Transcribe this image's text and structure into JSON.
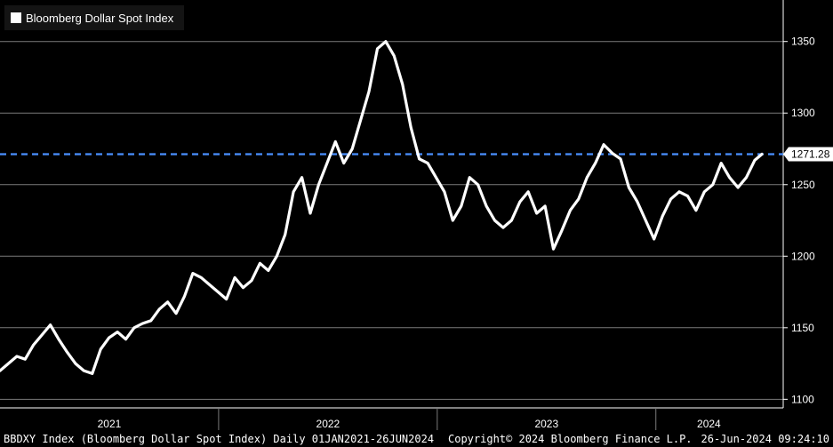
{
  "footer": {
    "left": "BBDXY Index (Bloomberg Dollar Spot Index)  Daily 01JAN2021-26JUN2024",
    "center": "Copyright© 2024 Bloomberg Finance L.P.",
    "right": "26-Jun-2024 09:24:10"
  },
  "colors": {
    "background": "#000000",
    "line": "#ffffff",
    "reference_line": "#4a90ff",
    "grid": "#7a7a7a"
  },
  "chart_data": {
    "type": "line",
    "title": "",
    "legend": {
      "entries": [
        "Bloomberg Dollar Spot Index"
      ],
      "placement": "top-left"
    },
    "xlabel": "",
    "ylabel": "",
    "x_tick_labels": [
      "2021",
      "2022",
      "2023",
      "2024"
    ],
    "y_ticks": [
      1100,
      1150,
      1200,
      1250,
      1300,
      1350
    ],
    "ylim": [
      1094,
      1379
    ],
    "xlim": [
      "2021-01-01",
      "2024-06-26"
    ],
    "grid": true,
    "y_axis_side": "right",
    "last_value": 1271.28,
    "last_value_label": "1271.28",
    "reference_line": {
      "value": 1271.28,
      "style": "dashed"
    },
    "series": [
      {
        "name": "Bloomberg Dollar Spot Index",
        "points": [
          [
            "2021-01-01",
            1120
          ],
          [
            "2021-01-15",
            1125
          ],
          [
            "2021-01-29",
            1130
          ],
          [
            "2021-02-12",
            1128
          ],
          [
            "2021-02-26",
            1138
          ],
          [
            "2021-03-12",
            1145
          ],
          [
            "2021-03-26",
            1152
          ],
          [
            "2021-04-09",
            1142
          ],
          [
            "2021-04-23",
            1133
          ],
          [
            "2021-05-07",
            1125
          ],
          [
            "2021-05-21",
            1120
          ],
          [
            "2021-06-04",
            1118
          ],
          [
            "2021-06-18",
            1135
          ],
          [
            "2021-07-02",
            1143
          ],
          [
            "2021-07-16",
            1147
          ],
          [
            "2021-07-30",
            1142
          ],
          [
            "2021-08-13",
            1150
          ],
          [
            "2021-08-27",
            1153
          ],
          [
            "2021-09-10",
            1155
          ],
          [
            "2021-09-24",
            1163
          ],
          [
            "2021-10-08",
            1168
          ],
          [
            "2021-10-22",
            1160
          ],
          [
            "2021-11-05",
            1172
          ],
          [
            "2021-11-19",
            1188
          ],
          [
            "2021-12-03",
            1185
          ],
          [
            "2021-12-17",
            1180
          ],
          [
            "2021-12-31",
            1175
          ],
          [
            "2022-01-14",
            1170
          ],
          [
            "2022-01-28",
            1185
          ],
          [
            "2022-02-11",
            1178
          ],
          [
            "2022-02-25",
            1183
          ],
          [
            "2022-03-11",
            1195
          ],
          [
            "2022-03-25",
            1190
          ],
          [
            "2022-04-08",
            1200
          ],
          [
            "2022-04-22",
            1215
          ],
          [
            "2022-05-06",
            1245
          ],
          [
            "2022-05-20",
            1255
          ],
          [
            "2022-06-03",
            1230
          ],
          [
            "2022-06-17",
            1250
          ],
          [
            "2022-07-01",
            1265
          ],
          [
            "2022-07-15",
            1280
          ],
          [
            "2022-07-29",
            1265
          ],
          [
            "2022-08-12",
            1275
          ],
          [
            "2022-08-26",
            1295
          ],
          [
            "2022-09-09",
            1315
          ],
          [
            "2022-09-23",
            1345
          ],
          [
            "2022-10-07",
            1350
          ],
          [
            "2022-10-21",
            1340
          ],
          [
            "2022-11-04",
            1320
          ],
          [
            "2022-11-18",
            1290
          ],
          [
            "2022-12-02",
            1268
          ],
          [
            "2022-12-16",
            1265
          ],
          [
            "2022-12-30",
            1255
          ],
          [
            "2023-01-13",
            1245
          ],
          [
            "2023-01-27",
            1225
          ],
          [
            "2023-02-10",
            1235
          ],
          [
            "2023-02-24",
            1255
          ],
          [
            "2023-03-10",
            1250
          ],
          [
            "2023-03-24",
            1235
          ],
          [
            "2023-04-07",
            1225
          ],
          [
            "2023-04-21",
            1220
          ],
          [
            "2023-05-05",
            1225
          ],
          [
            "2023-05-19",
            1238
          ],
          [
            "2023-06-02",
            1245
          ],
          [
            "2023-06-16",
            1230
          ],
          [
            "2023-06-30",
            1235
          ],
          [
            "2023-07-14",
            1205
          ],
          [
            "2023-07-28",
            1218
          ],
          [
            "2023-08-11",
            1232
          ],
          [
            "2023-08-25",
            1240
          ],
          [
            "2023-09-08",
            1255
          ],
          [
            "2023-09-22",
            1265
          ],
          [
            "2023-10-06",
            1278
          ],
          [
            "2023-10-20",
            1272
          ],
          [
            "2023-11-03",
            1268
          ],
          [
            "2023-11-17",
            1248
          ],
          [
            "2023-12-01",
            1238
          ],
          [
            "2023-12-15",
            1225
          ],
          [
            "2023-12-29",
            1212
          ],
          [
            "2024-01-12",
            1228
          ],
          [
            "2024-01-26",
            1240
          ],
          [
            "2024-02-09",
            1245
          ],
          [
            "2024-02-23",
            1242
          ],
          [
            "2024-03-08",
            1232
          ],
          [
            "2024-03-22",
            1245
          ],
          [
            "2024-04-05",
            1250
          ],
          [
            "2024-04-19",
            1265
          ],
          [
            "2024-05-03",
            1255
          ],
          [
            "2024-05-17",
            1248
          ],
          [
            "2024-05-31",
            1255
          ],
          [
            "2024-06-14",
            1267
          ],
          [
            "2024-06-26",
            1271.28
          ]
        ]
      }
    ]
  }
}
